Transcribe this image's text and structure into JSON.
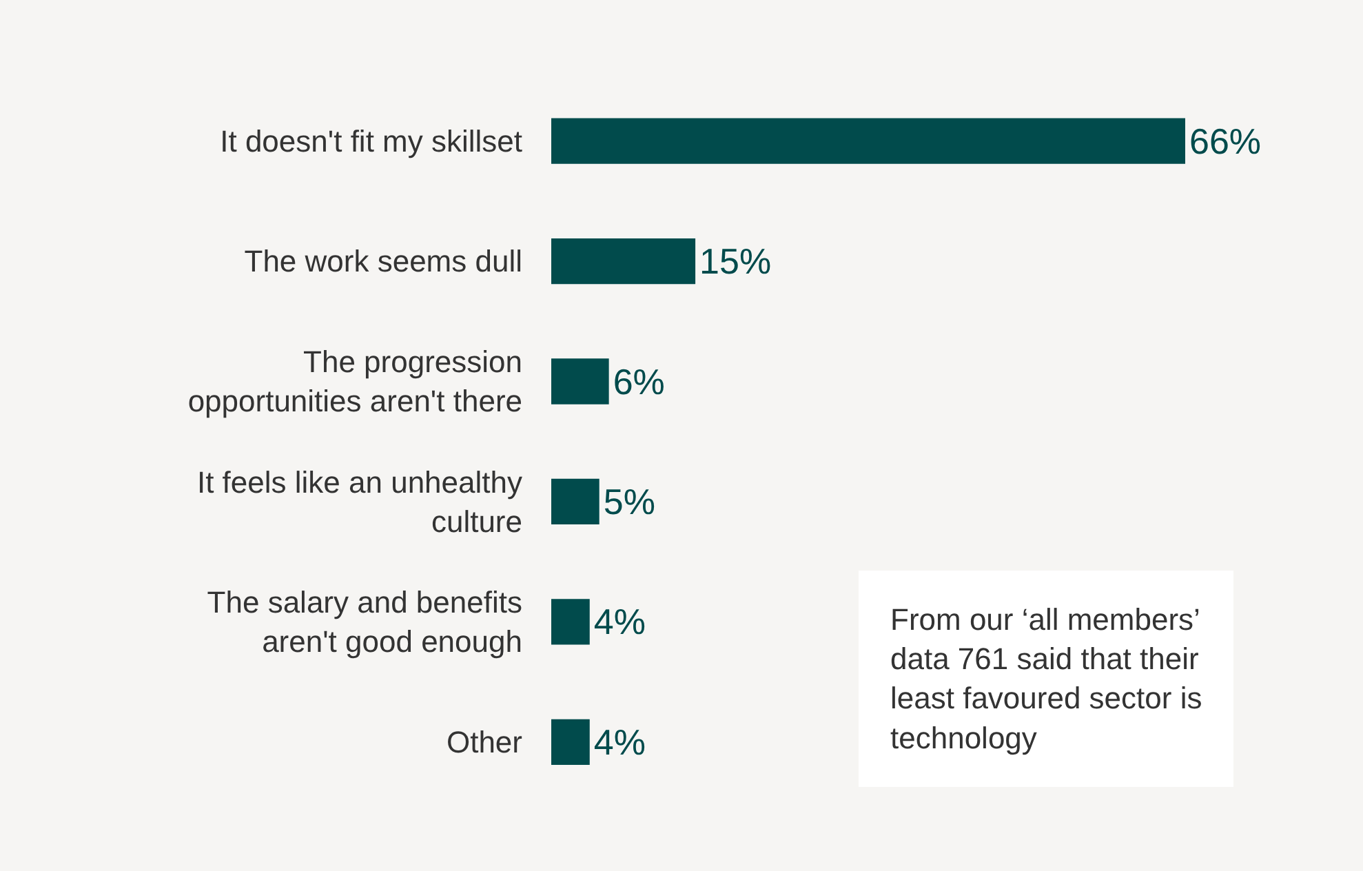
{
  "chart_data": {
    "type": "bar",
    "orientation": "horizontal",
    "categories": [
      "It doesn't fit my skillset",
      "The work seems dull",
      "The progression opportunities aren't there",
      "It feels like an unhealthy culture",
      "The salary and benefits aren't good enough",
      "Other"
    ],
    "values": [
      66,
      15,
      6,
      5,
      4,
      4
    ],
    "value_labels": [
      "66%",
      "15%",
      "6%",
      "5%",
      "4%",
      "4%"
    ],
    "color": "#014b4c",
    "annotations": [
      "From our ‘all members’ data 761 said that their least favoured sector is technology"
    ],
    "grid": false,
    "legend": false
  }
}
